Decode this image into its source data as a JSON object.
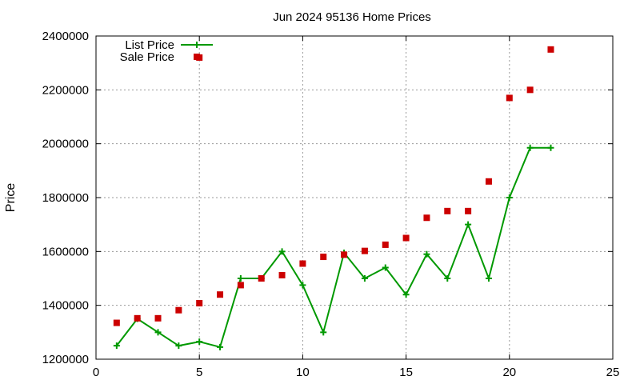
{
  "chart_data": {
    "type": "line",
    "title": "Jun 2024 95136 Home Prices",
    "xlabel": "",
    "ylabel": "Price",
    "xlim": [
      0,
      25
    ],
    "ylim": [
      1200000,
      2400000
    ],
    "x_ticks": [
      0,
      5,
      10,
      15,
      20,
      25
    ],
    "y_ticks": [
      1200000,
      1400000,
      1600000,
      1800000,
      2000000,
      2200000,
      2400000
    ],
    "grid": true,
    "legend_position": "top-left",
    "series": [
      {
        "name": "List Price",
        "style": "line-with-plus-markers",
        "color": "#009900",
        "x": [
          1,
          2,
          3,
          4,
          5,
          6,
          7,
          8,
          9,
          10,
          11,
          12,
          13,
          14,
          15,
          16,
          17,
          18,
          19,
          20,
          21,
          22
        ],
        "values": [
          1250000,
          1350000,
          1300000,
          1250000,
          1265000,
          1245000,
          1500000,
          1500000,
          1600000,
          1475000,
          1300000,
          1595000,
          1500000,
          1540000,
          1440000,
          1590000,
          1500000,
          1700000,
          1500000,
          1800000,
          1985000,
          1985000
        ]
      },
      {
        "name": "Sale Price",
        "style": "square-markers",
        "color": "#cc0000",
        "x": [
          1,
          2,
          3,
          4,
          5,
          5,
          6,
          7,
          8,
          9,
          10,
          11,
          12,
          13,
          14,
          15,
          16,
          17,
          18,
          19,
          20,
          21,
          22
        ],
        "values": [
          1335000,
          1352000,
          1352000,
          1382000,
          1408000,
          2320000,
          1440000,
          1475000,
          1500000,
          1512000,
          1555000,
          1580000,
          1588000,
          1602000,
          1625000,
          1650000,
          1725000,
          1750000,
          1750000,
          1860000,
          2170000,
          2200000,
          2350000
        ]
      }
    ]
  }
}
